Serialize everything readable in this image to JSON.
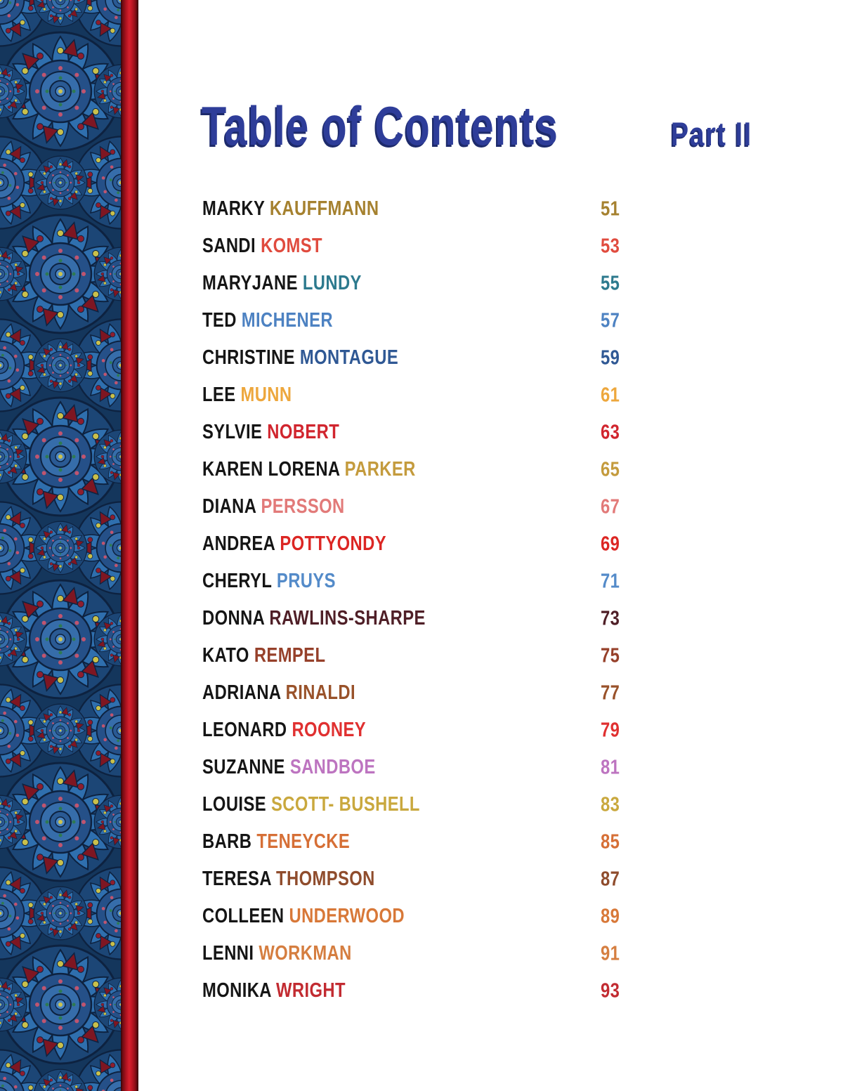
{
  "page": {
    "title": "Table of Contents",
    "part_label": "Part II",
    "title_color": "#2e3d99",
    "title_shadow_color": "#1d2a6b",
    "background_color": "#ffffff"
  },
  "sidebar": {
    "pattern_base_color": "#14365c",
    "pattern_accent_colors": [
      "#2f6fae",
      "#7e1622",
      "#c9c04b",
      "#c05570",
      "#0d2240"
    ],
    "spine_gradient": [
      "#2e0507",
      "#b31421",
      "#d8202e",
      "#8c0f16",
      "#330406"
    ]
  },
  "toc": {
    "entries": [
      {
        "first": "MARKY",
        "last": "KAUFFMANN",
        "page": "51",
        "color": "#a5812f"
      },
      {
        "first": "SANDI",
        "last": "KOMST",
        "page": "53",
        "color": "#e04b3e"
      },
      {
        "first": "MARYJANE",
        "last": "LUNDY",
        "page": "55",
        "color": "#2d7a8e"
      },
      {
        "first": "TED",
        "last": "MICHENER",
        "page": "57",
        "color": "#4d82c2"
      },
      {
        "first": "CHRISTINE",
        "last": "MONTAGUE",
        "page": "59",
        "color": "#2f5894"
      },
      {
        "first": "LEE",
        "last": "MUNN",
        "page": "61",
        "color": "#eda73d"
      },
      {
        "first": "SYLVIE",
        "last": "NOBERT",
        "page": "63",
        "color": "#d1252e"
      },
      {
        "first": "KAREN LORENA",
        "last": "PARKER",
        "page": "65",
        "color": "#c49b3d"
      },
      {
        "first": "DIANA",
        "last": "PERSSON",
        "page": "67",
        "color": "#e27a79"
      },
      {
        "first": "ANDREA",
        "last": "POTTYONDY",
        "page": "69",
        "color": "#dc2623"
      },
      {
        "first": "CHERYL",
        "last": "PRUYS",
        "page": "71",
        "color": "#548bc9"
      },
      {
        "first": "DONNA",
        "last": "RAWLINS-SHARPE",
        "page": "73",
        "color": "#4f1f27"
      },
      {
        "first": "KATO",
        "last": "REMPEL",
        "page": "75",
        "color": "#96402a"
      },
      {
        "first": "ADRIANA",
        "last": "RINALDI",
        "page": "77",
        "color": "#99522a"
      },
      {
        "first": "LEONARD",
        "last": "ROONEY",
        "page": "79",
        "color": "#e03030"
      },
      {
        "first": "SUZANNE",
        "last": "SANDBOE",
        "page": "81",
        "color": "#bd74c0"
      },
      {
        "first": "LOUISE",
        "last": "SCOTT- BUSHELL",
        "page": "83",
        "color": "#c9a83e"
      },
      {
        "first": "BARB",
        "last": "TENEYCKE",
        "page": "85",
        "color": "#d66f36"
      },
      {
        "first": "TERESA",
        "last": "THOMPSON",
        "page": "87",
        "color": "#8f4c2c"
      },
      {
        "first": "COLLEEN",
        "last": "UNDERWOOD",
        "page": "89",
        "color": "#d87838"
      },
      {
        "first": "LENNI",
        "last": "WORKMAN",
        "page": "91",
        "color": "#d57e40"
      },
      {
        "first": "MONIKA",
        "last": "WRIGHT",
        "page": "93",
        "color": "#c22b31"
      }
    ]
  }
}
